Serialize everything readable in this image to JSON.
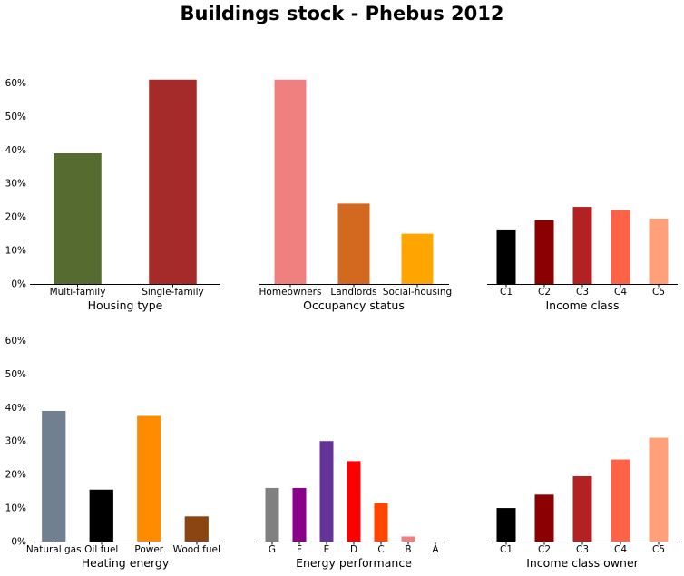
{
  "title": "Buildings stock - Phebus 2012",
  "y_tick_labels": [
    "0%",
    "10%",
    "20%",
    "30%",
    "40%",
    "50%",
    "60%"
  ],
  "chart_data": [
    {
      "type": "bar",
      "xlabel": "Housing type",
      "categories": [
        "Multi-family",
        "Single-family"
      ],
      "values": [
        39,
        61
      ],
      "colors": [
        "#556b2f",
        "#a52a2a"
      ],
      "ylim": [
        0,
        65
      ],
      "yticks": [
        0,
        10,
        20,
        30,
        40,
        50,
        60
      ],
      "show_yticklabels": true
    },
    {
      "type": "bar",
      "xlabel": "Occupancy status",
      "categories": [
        "Homeowners",
        "Landlords",
        "Social-housing"
      ],
      "values": [
        61,
        24,
        15
      ],
      "colors": [
        "#f08080",
        "#d2691e",
        "#ffa500"
      ],
      "ylim": [
        0,
        65
      ],
      "yticks": [
        0,
        10,
        20,
        30,
        40,
        50,
        60
      ],
      "show_yticklabels": false
    },
    {
      "type": "bar",
      "xlabel": "Income class",
      "categories": [
        "C1",
        "C2",
        "C3",
        "C4",
        "C5"
      ],
      "values": [
        16,
        19,
        23,
        22,
        19.5
      ],
      "colors": [
        "#000000",
        "#8b0000",
        "#b22222",
        "#ff6347",
        "#ffa07a"
      ],
      "ylim": [
        0,
        65
      ],
      "yticks": [
        0,
        10,
        20,
        30,
        40,
        50,
        60
      ],
      "show_yticklabels": false
    },
    {
      "type": "bar",
      "xlabel": "Heating energy",
      "categories": [
        "Natural gas",
        "Oil fuel",
        "Power",
        "Wood fuel"
      ],
      "values": [
        39,
        15.5,
        37.5,
        7.5
      ],
      "colors": [
        "#708090",
        "#000000",
        "#ff8c00",
        "#8b4513"
      ],
      "ylim": [
        0,
        65
      ],
      "yticks": [
        0,
        10,
        20,
        30,
        40,
        50,
        60
      ],
      "show_yticklabels": true
    },
    {
      "type": "bar",
      "xlabel": "Energy performance",
      "categories": [
        "G",
        "F",
        "E",
        "D",
        "C",
        "B",
        "A"
      ],
      "values": [
        16,
        16,
        30,
        24,
        11.5,
        1.5,
        0
      ],
      "colors": [
        "#808080",
        "#8b008b",
        "#663399",
        "#ff0000",
        "#ff4500",
        "#f08080",
        "#ffb6c1"
      ],
      "ylim": [
        0,
        65
      ],
      "yticks": [
        0,
        10,
        20,
        30,
        40,
        50,
        60
      ],
      "show_yticklabels": false
    },
    {
      "type": "bar",
      "xlabel": "Income class owner",
      "categories": [
        "C1",
        "C2",
        "C3",
        "C4",
        "C5"
      ],
      "values": [
        10,
        14,
        19.5,
        24.5,
        31
      ],
      "colors": [
        "#000000",
        "#8b0000",
        "#b22222",
        "#ff6347",
        "#ffa07a"
      ],
      "ylim": [
        0,
        65
      ],
      "yticks": [
        0,
        10,
        20,
        30,
        40,
        50,
        60
      ],
      "show_yticklabels": false
    }
  ]
}
